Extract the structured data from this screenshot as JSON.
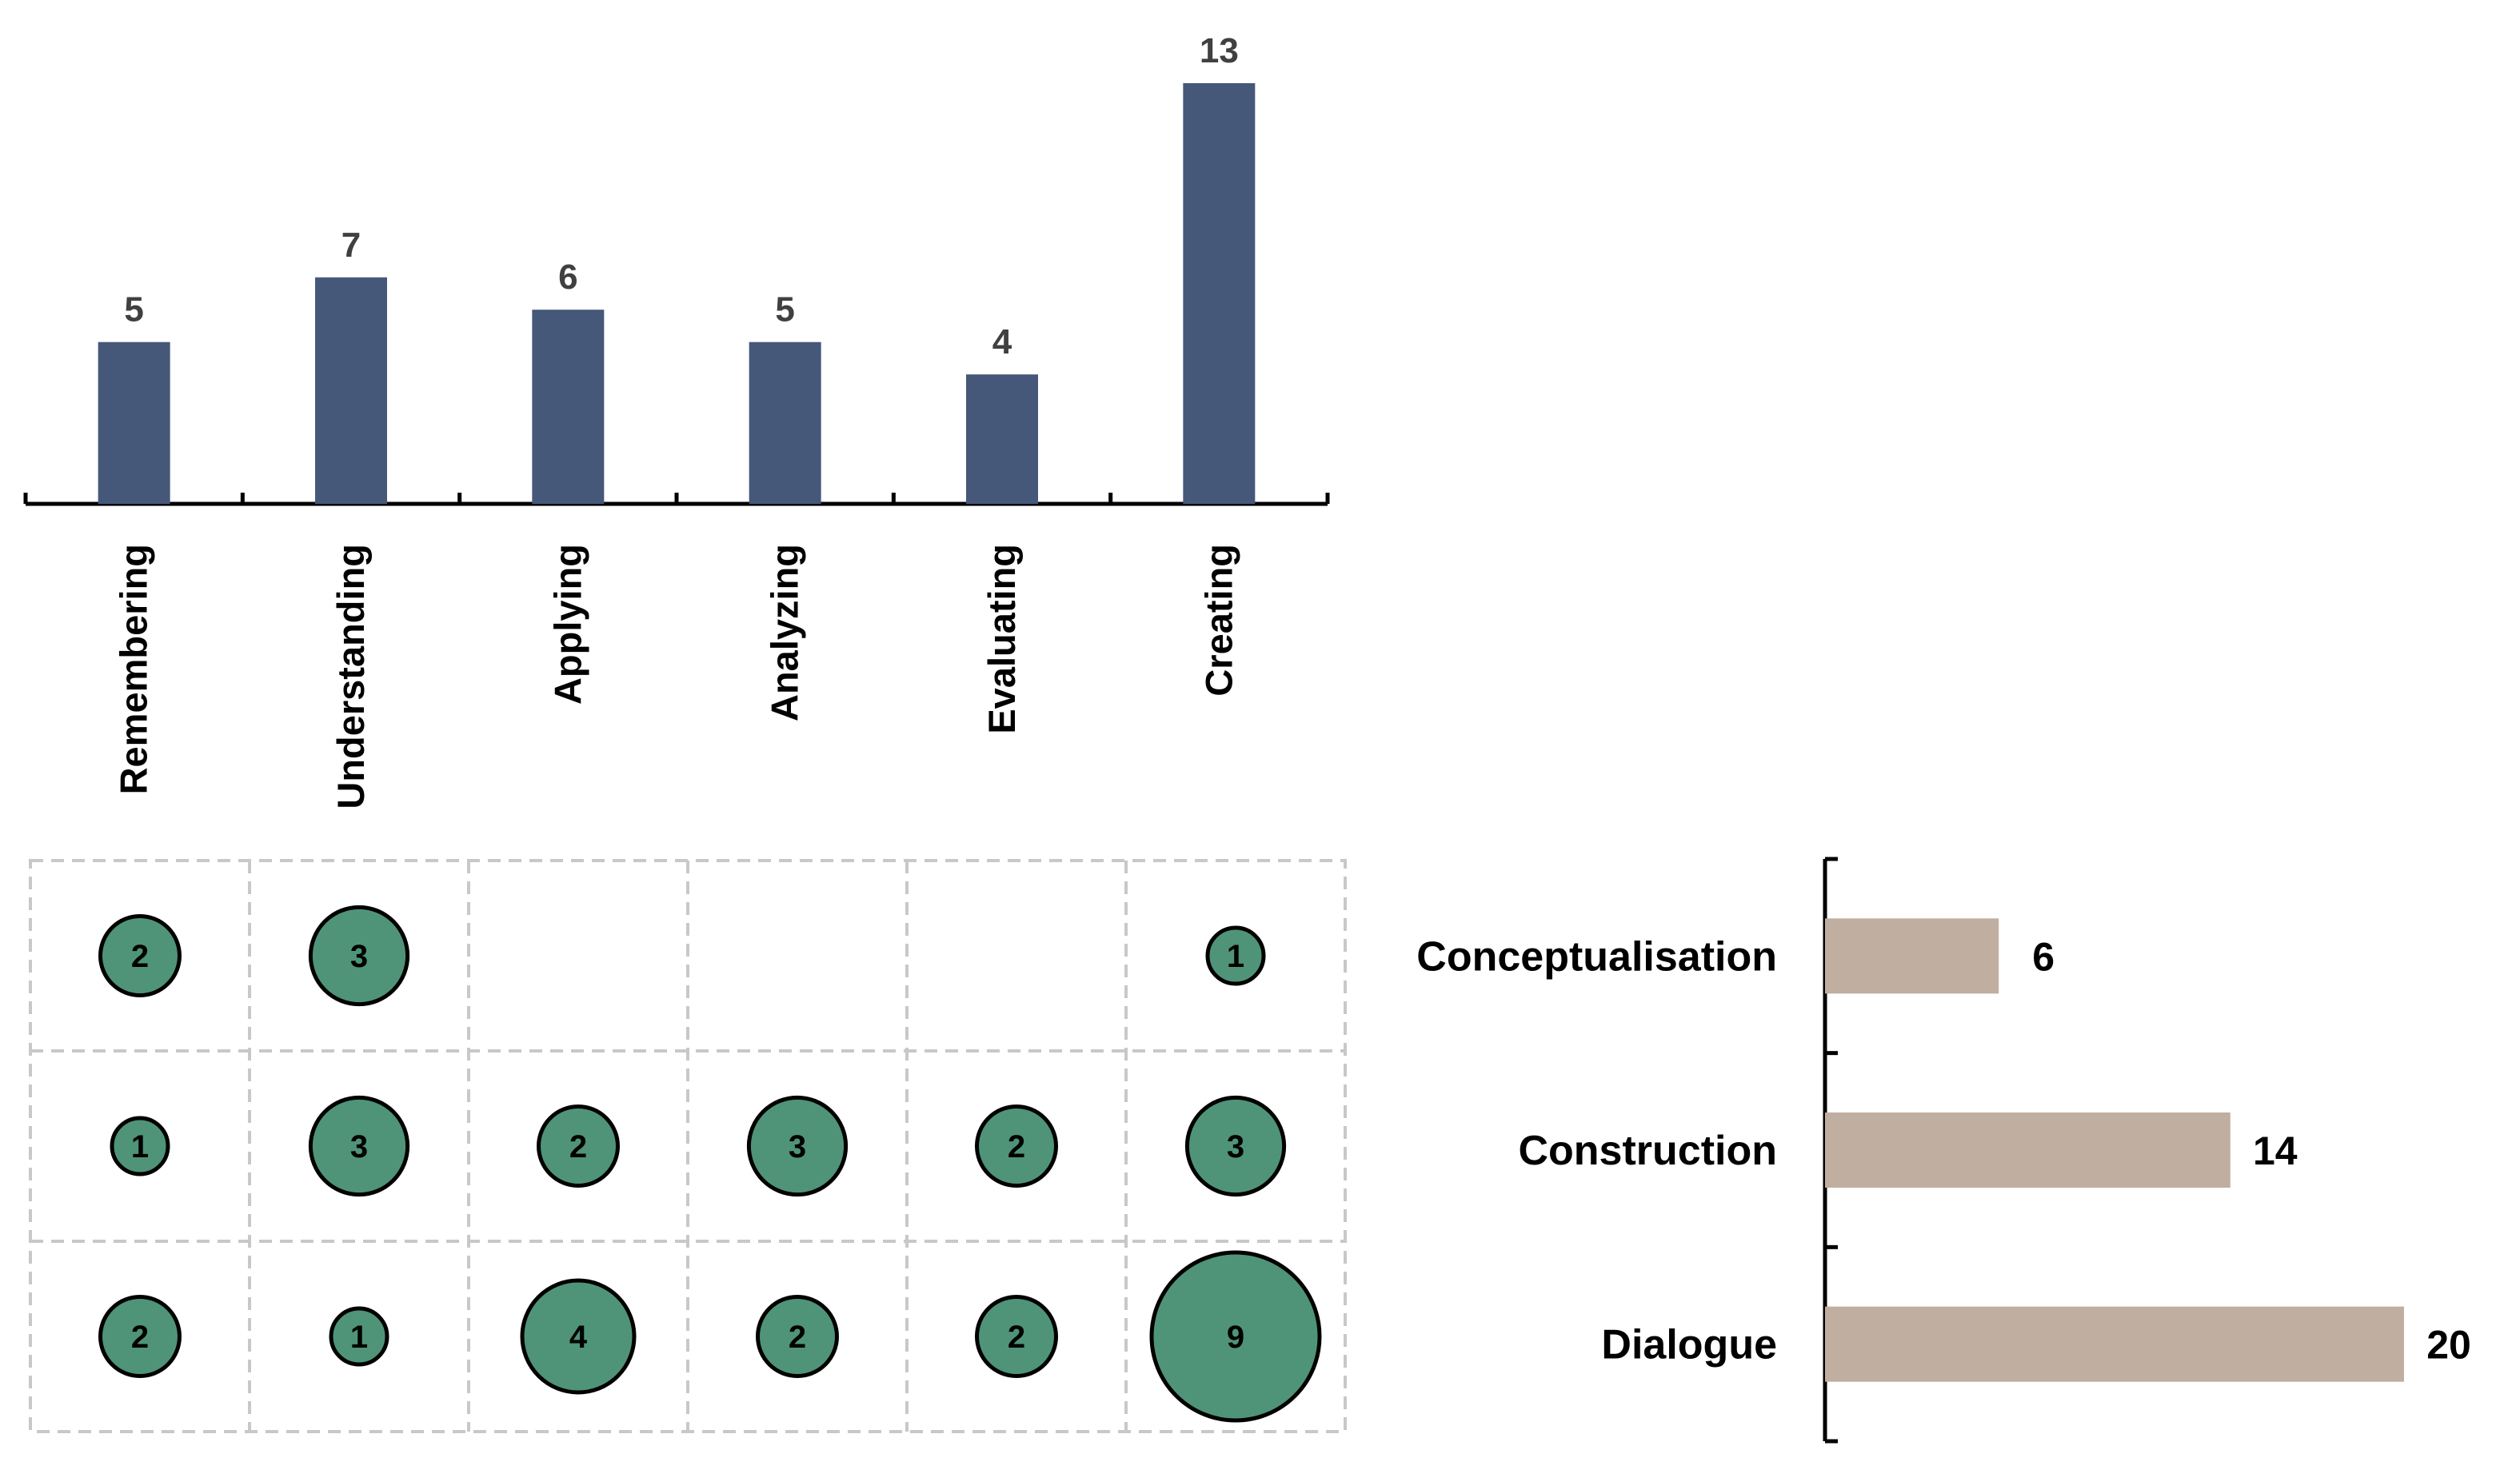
{
  "chart_data": [
    {
      "type": "bar",
      "title": "",
      "categories": [
        "Remembering",
        "Understanding",
        "Applying",
        "Analyzing",
        "Evaluating",
        "Creating"
      ],
      "values": [
        5,
        7,
        6,
        5,
        4,
        13
      ],
      "value_labels": [
        "5",
        "7",
        "6",
        "5",
        "4",
        "13"
      ],
      "xlabel": "",
      "ylabel": "",
      "ylim": [
        0,
        13
      ],
      "color": "#465879"
    },
    {
      "type": "bubble",
      "title": "",
      "columns": [
        "Remembering",
        "Understanding",
        "Applying",
        "Analyzing",
        "Evaluating",
        "Creating"
      ],
      "rows": [
        "Conceptualisation",
        "Construction",
        "Dialogue"
      ],
      "values": [
        [
          2,
          3,
          null,
          null,
          null,
          1
        ],
        [
          1,
          3,
          2,
          3,
          2,
          3
        ],
        [
          2,
          1,
          4,
          2,
          2,
          9
        ]
      ],
      "labels": [
        [
          "2",
          "3",
          "",
          "",
          "",
          "1"
        ],
        [
          "1",
          "3",
          "2",
          "3",
          "2",
          "3"
        ],
        [
          "2",
          "1",
          "4",
          "2",
          "2",
          "9"
        ]
      ],
      "color": "#4f9478",
      "grid": "dashed"
    },
    {
      "type": "bar-horizontal",
      "title": "",
      "categories": [
        "Conceptualisation",
        "Construction",
        "Dialogue"
      ],
      "values": [
        6,
        14,
        20
      ],
      "value_labels": [
        "6",
        "14",
        "20"
      ],
      "xlim": [
        0,
        20
      ],
      "color": "#c0aea0"
    }
  ]
}
